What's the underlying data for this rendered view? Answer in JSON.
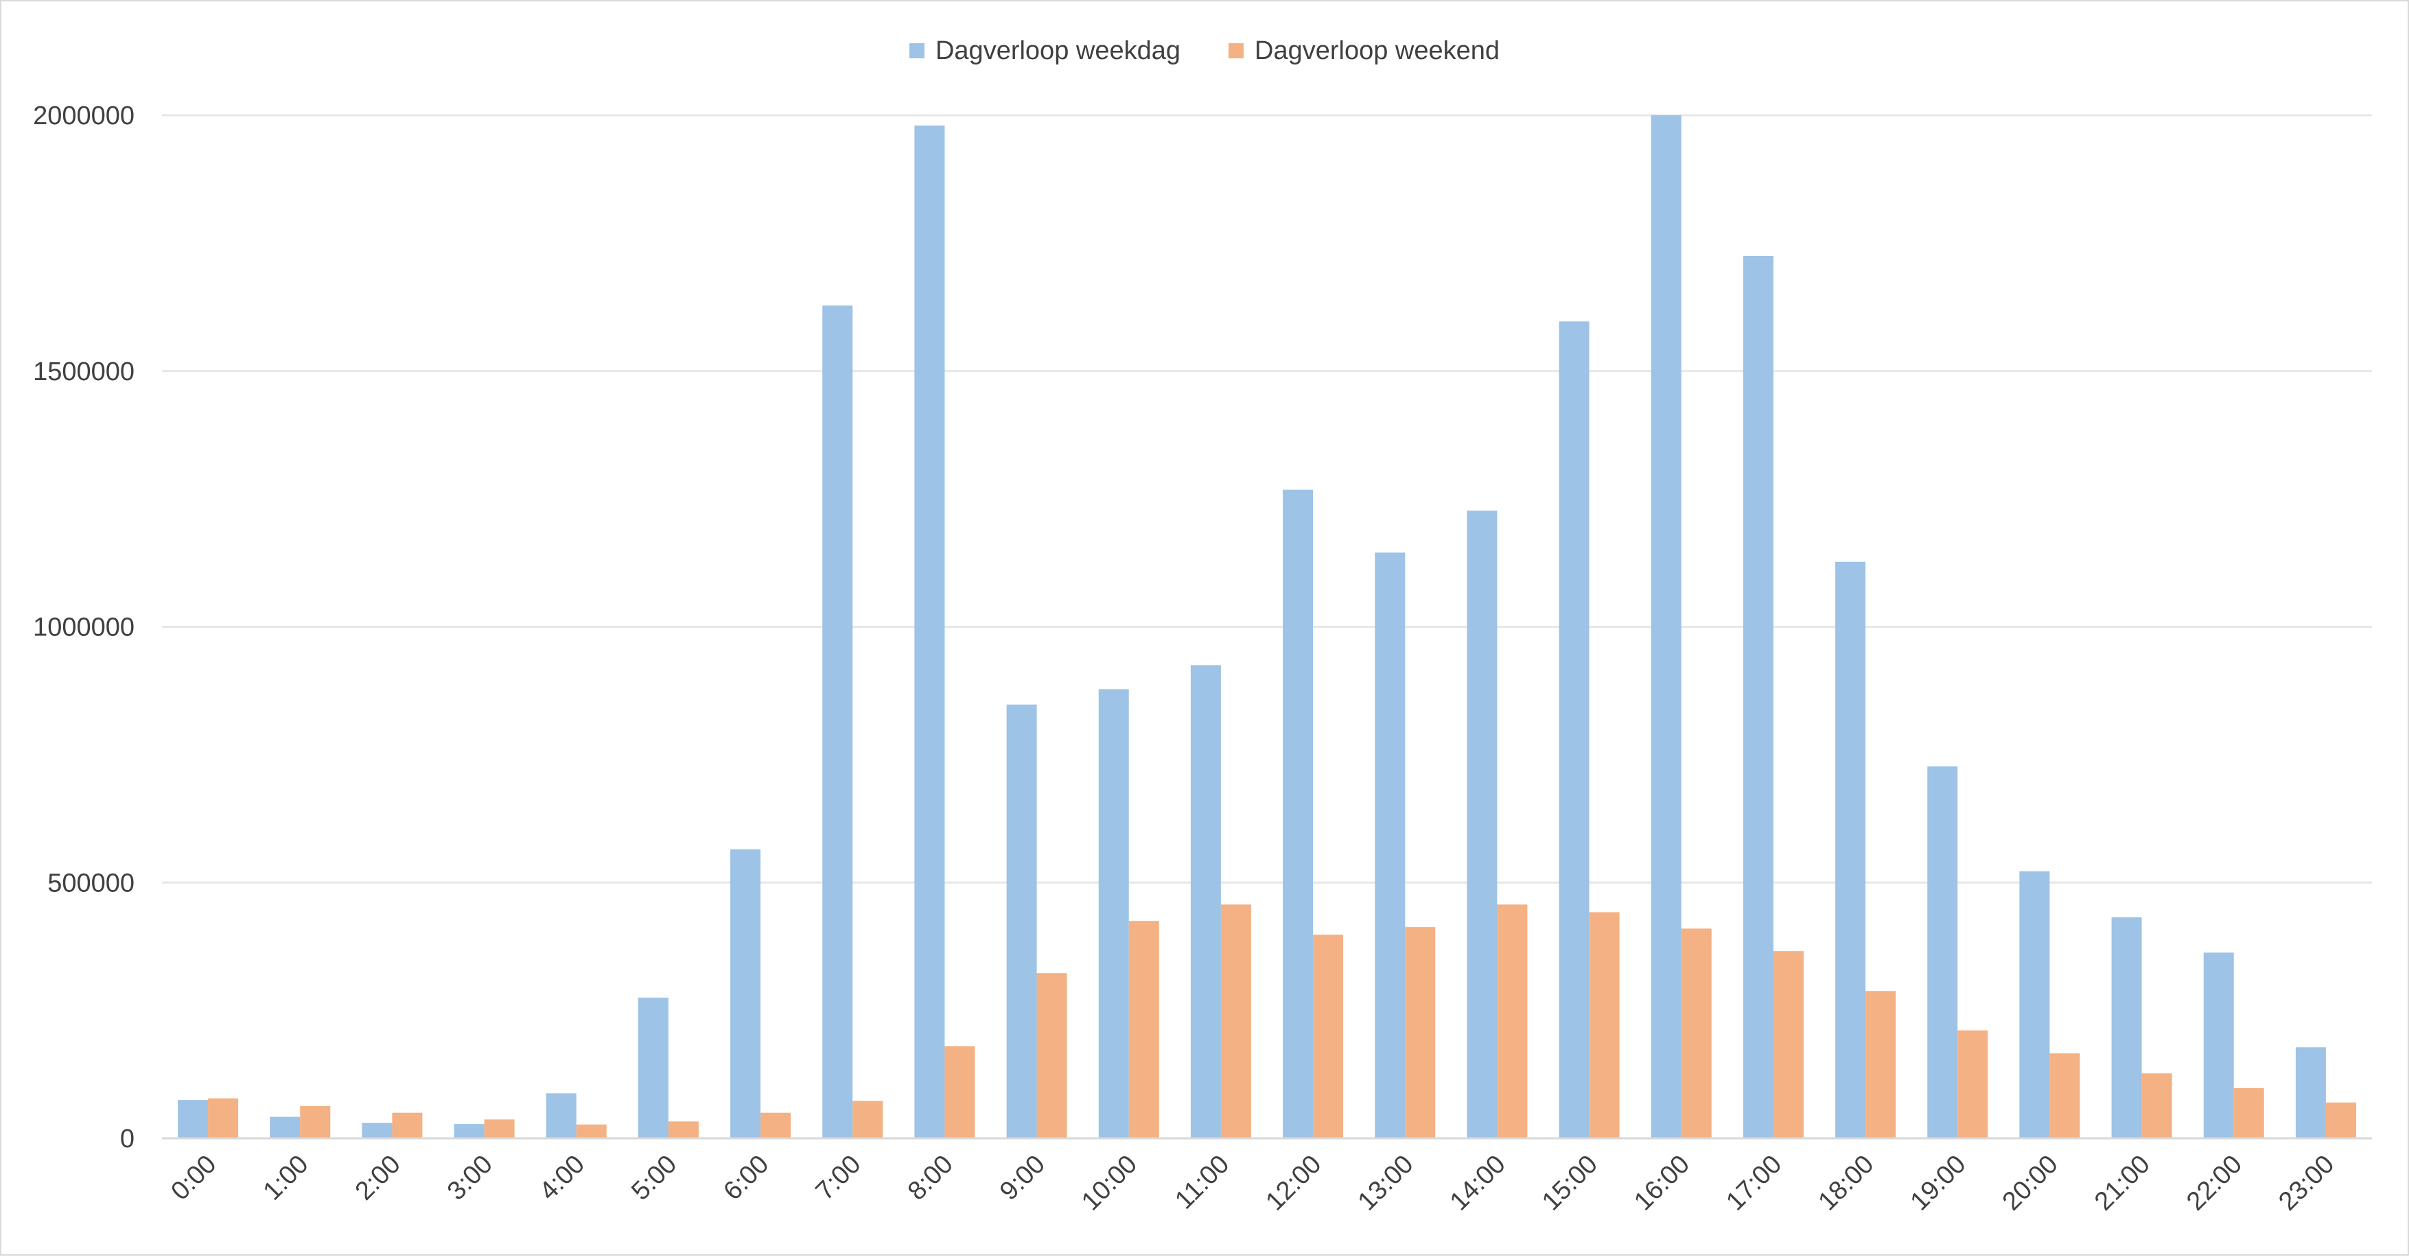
{
  "chart_data": {
    "type": "bar",
    "categories": [
      "0:00",
      "1:00",
      "2:00",
      "3:00",
      "4:00",
      "5:00",
      "6:00",
      "7:00",
      "8:00",
      "9:00",
      "10:00",
      "11:00",
      "12:00",
      "13:00",
      "14:00",
      "15:00",
      "16:00",
      "17:00",
      "18:00",
      "19:00",
      "20:00",
      "21:00",
      "22:00",
      "23:00"
    ],
    "series": [
      {
        "name": "Dagverloop weekdag",
        "color": "#9dc3e6",
        "values": [
          75000,
          42000,
          30000,
          28000,
          88000,
          275000,
          565000,
          1628000,
          1980000,
          848000,
          878000,
          925000,
          1268000,
          1145000,
          1227000,
          1597000,
          2000000,
          1725000,
          1127000,
          727000,
          522000,
          432000,
          363000,
          178000
        ]
      },
      {
        "name": "Dagverloop weekend",
        "color": "#f4b183",
        "values": [
          78000,
          63000,
          50000,
          37000,
          27000,
          33000,
          50000,
          73000,
          180000,
          323000,
          425000,
          457000,
          398000,
          413000,
          457000,
          442000,
          410000,
          366000,
          288000,
          211000,
          166000,
          127000,
          98000,
          70000
        ]
      }
    ],
    "yticks": [
      "0",
      "500000",
      "1000000",
      "1500000",
      "2000000"
    ],
    "ylim": [
      0,
      2000000
    ],
    "grid": true,
    "legend_position": "top-center",
    "gridline_color": "#e7e7e7",
    "axis_color": "#d9d9d9",
    "text_color": "#404040"
  }
}
